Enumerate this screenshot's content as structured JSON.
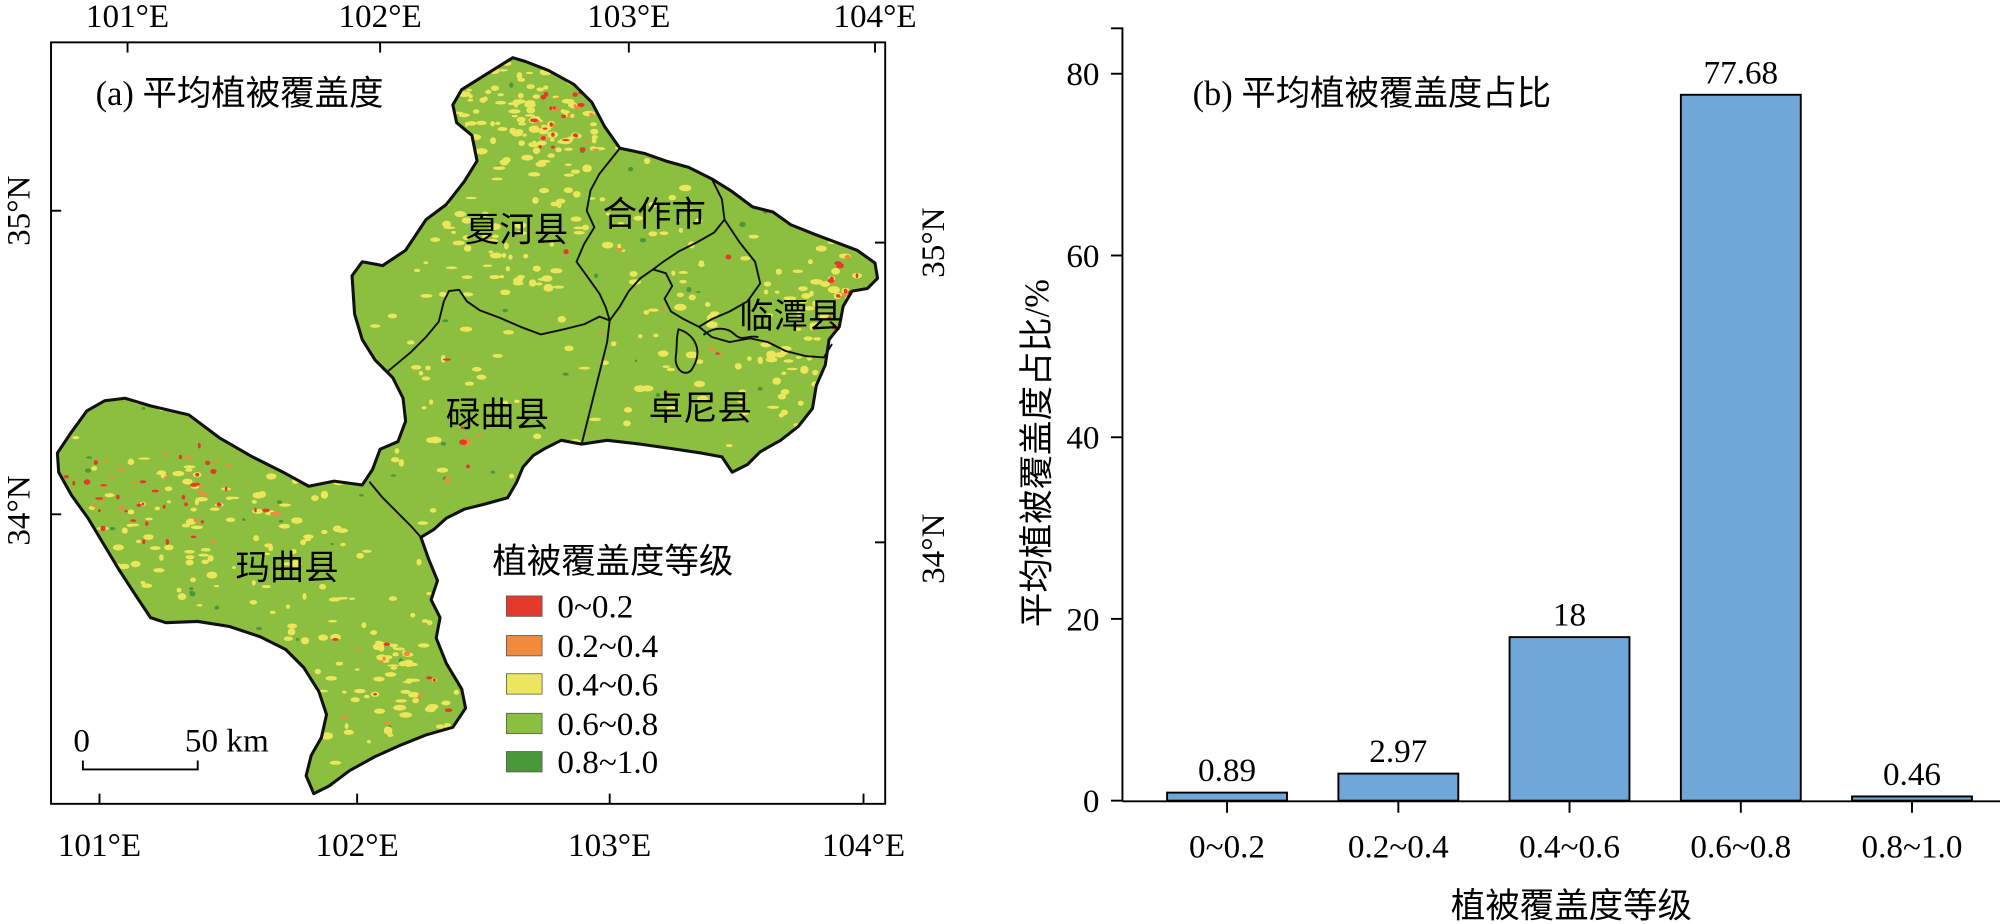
{
  "map_panel": {
    "title": "(a) 平均植被覆盖度",
    "lon_labels_top": [
      "101°E",
      "102°E",
      "103°E",
      "104°E"
    ],
    "lon_labels_bottom": [
      "101°E",
      "102°E",
      "103°E",
      "104°E"
    ],
    "lat_labels_left": [
      "35°N",
      "34°N"
    ],
    "lat_labels_right": [
      "35°N",
      "34°N"
    ],
    "counties": [
      "夏河县",
      "合作市",
      "临潭县",
      "碌曲县",
      "卓尼县",
      "玛曲县"
    ],
    "legend": {
      "title": "植被覆盖度等级",
      "items": [
        {
          "label": "0~0.2",
          "color": "#e5392c"
        },
        {
          "label": "0.2~0.4",
          "color": "#f08a3c"
        },
        {
          "label": "0.4~0.6",
          "color": "#ece65c"
        },
        {
          "label": "0.6~0.8",
          "color": "#8cbe3f"
        },
        {
          "label": "0.8~1.0",
          "color": "#4a983a"
        }
      ]
    },
    "scale_bar": {
      "start_label": "0",
      "end_label": "50 km"
    }
  },
  "chart_data": {
    "type": "bar",
    "title": "(b) 平均植被覆盖度占比",
    "categories": [
      "0~0.2",
      "0.2~0.4",
      "0.4~0.6",
      "0.6~0.8",
      "0.8~1.0"
    ],
    "values": [
      0.89,
      2.97,
      18,
      77.68,
      0.46
    ],
    "value_labels": [
      "0.89",
      "2.97",
      "18",
      "77.68",
      "0.46"
    ],
    "xlabel": "植被覆盖度等级",
    "ylabel": "平均植被覆盖度占比/%",
    "ylim": [
      0,
      85
    ],
    "yticks": [
      0,
      20,
      40,
      60,
      80
    ],
    "bar_color": "#6fa8d8",
    "grid": false
  }
}
